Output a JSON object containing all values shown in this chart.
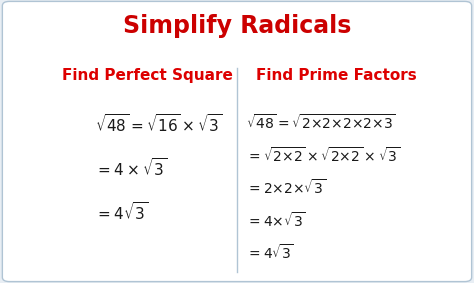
{
  "title": "Simplify Radicals",
  "title_color": "#cc0000",
  "title_fontsize": 17,
  "background_color": "#e8eef4",
  "box_color": "#ffffff",
  "border_color": "#b0c4d4",
  "divider_color": "#b0c4d4",
  "left_header": "Find Perfect Square",
  "right_header": "Find Prime Factors",
  "header_color": "#dd0000",
  "header_fontsize": 11,
  "math_color": "#1a1a1a",
  "math_fontsize": 11,
  "left_lines": [
    "$\\sqrt{48} = \\sqrt{16} \\times \\sqrt{3}$",
    "$= 4 \\times \\sqrt{3}$",
    "$= 4\\sqrt{3}$"
  ],
  "right_lines": [
    "$\\sqrt{48} = \\sqrt{2{\\times}2{\\times}2{\\times}2{\\times}3}$",
    "$= \\sqrt{2{\\times}2} \\times \\sqrt{2{\\times}2} \\times \\sqrt{3}$",
    "$= 2{\\times}2{\\times}\\sqrt{3}$",
    "$= 4{\\times}\\sqrt{3}$",
    "$= 4\\sqrt{3}$"
  ],
  "fig_width": 4.74,
  "fig_height": 2.83,
  "dpi": 100
}
